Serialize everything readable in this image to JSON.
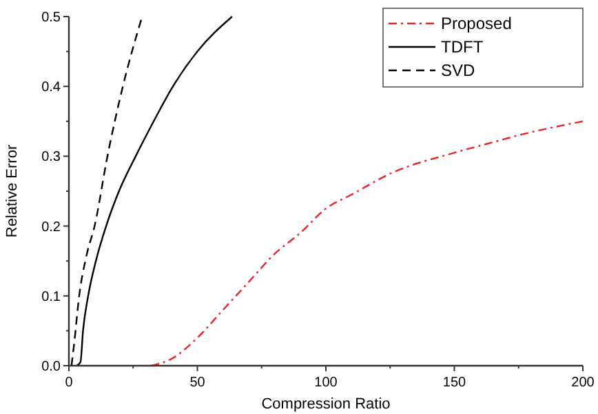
{
  "chart_data": {
    "type": "line",
    "xlabel": "Compression Ratio",
    "ylabel": "Relative Error",
    "xlim": [
      0,
      200
    ],
    "ylim": [
      0,
      0.5
    ],
    "xticks": [
      0,
      {
        "value": 25,
        "label": null
      },
      50,
      {
        "value": 75,
        "label": null
      },
      100,
      {
        "value": 125,
        "label": null
      },
      150,
      {
        "value": 175,
        "label": null
      },
      200
    ],
    "yticks": [
      {
        "value": 0,
        "label": "0.0"
      },
      {
        "value": 0.05,
        "label": null
      },
      0.1,
      {
        "value": 0.15,
        "label": null
      },
      0.2,
      {
        "value": 0.25,
        "label": null
      },
      0.3,
      {
        "value": 0.35,
        "label": null
      },
      0.4,
      {
        "value": 0.45,
        "label": null
      },
      0.5
    ],
    "legend": "top right",
    "grid": false,
    "series": [
      {
        "name": "Proposed",
        "color": "#e8262c",
        "line_style": "dash-dot",
        "x": [
          32,
          40,
          50,
          60,
          70,
          80,
          90,
          100,
          110,
          125,
          150,
          165,
          175,
          200
        ],
        "values": [
          0,
          0.01,
          0.04,
          0.08,
          0.12,
          0.16,
          0.19,
          0.225,
          0.245,
          0.275,
          0.305,
          0.32,
          0.33,
          0.35
        ]
      },
      {
        "name": "TDFT",
        "color": "#000000",
        "line_style": "solid",
        "x": [
          3,
          4.5,
          5.5,
          7.5,
          10.5,
          14.5,
          19.5,
          26,
          33,
          40.5,
          50,
          63.5
        ],
        "values": [
          0,
          0.005,
          0.05,
          0.1,
          0.15,
          0.2,
          0.25,
          0.3,
          0.35,
          0.4,
          0.45,
          0.5
        ]
      },
      {
        "name": "SVD",
        "color": "#000000",
        "line_style": "dashed",
        "x": [
          1,
          2,
          4,
          7,
          10,
          15,
          21,
          28.5
        ],
        "values": [
          0,
          0.03,
          0.1,
          0.16,
          0.2,
          0.3,
          0.4,
          0.5
        ]
      }
    ]
  }
}
